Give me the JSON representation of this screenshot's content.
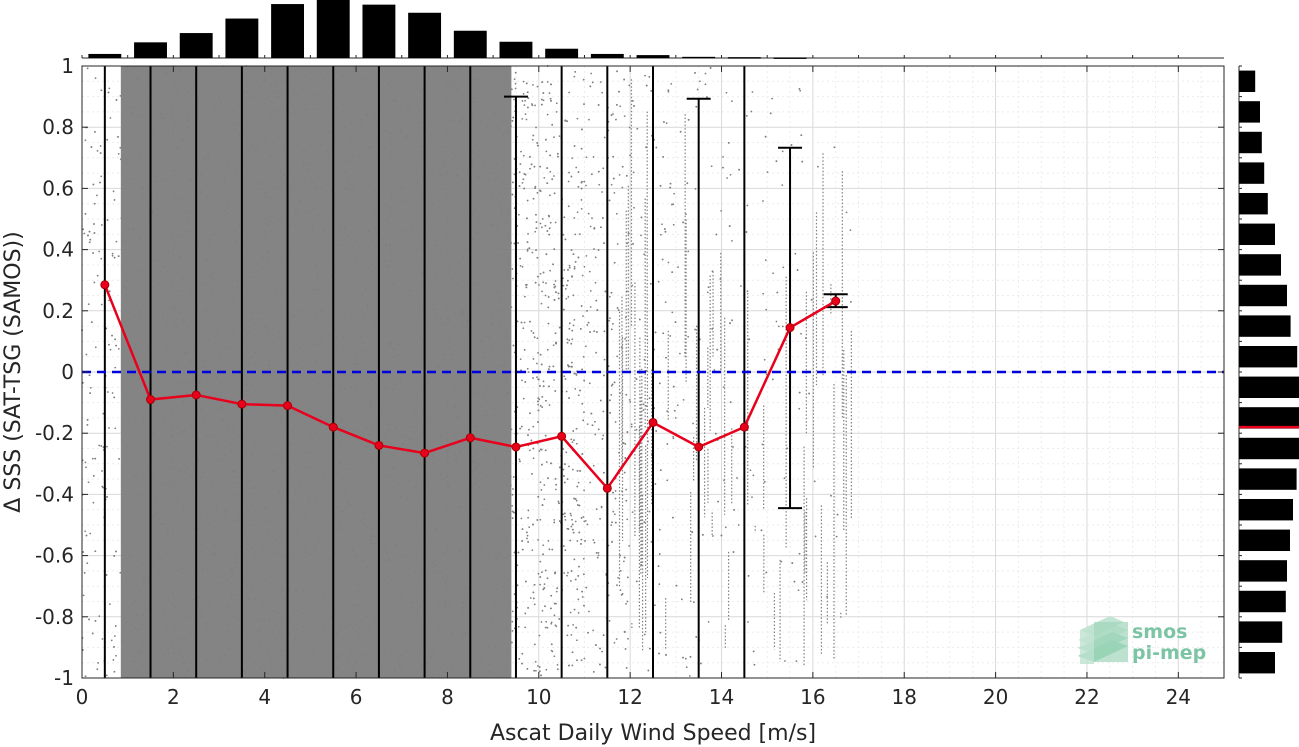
{
  "chart_data": {
    "type": "scatter",
    "xlabel": "Ascat Daily Wind Speed [m/s]",
    "ylabel": "Δ SSS (SAT-TSG (SAMOS))",
    "xlim": [
      0,
      25
    ],
    "ylim": [
      -1,
      1
    ],
    "x_ticks": [
      "0",
      "2",
      "4",
      "6",
      "8",
      "10",
      "12",
      "14",
      "16",
      "18",
      "20",
      "22",
      "24"
    ],
    "y_ticks": [
      "-1",
      "-0.8",
      "-0.6",
      "-0.4",
      "-0.2",
      "0",
      "0.2",
      "0.4",
      "0.6",
      "0.8",
      "1"
    ],
    "grid": true,
    "zero_reference_line": {
      "y": 0,
      "color": "#0000dd",
      "style": "dashed"
    },
    "bin_mean": {
      "color": "#e8001c",
      "x": [
        0.5,
        1.5,
        2.5,
        3.5,
        4.5,
        5.5,
        6.5,
        7.5,
        8.5,
        9.5,
        10.5,
        11.5,
        12.5,
        13.5,
        14.5,
        15.5,
        16.5
      ],
      "y": [
        0.285,
        -0.09,
        -0.075,
        -0.105,
        -0.11,
        -0.18,
        -0.24,
        -0.265,
        -0.215,
        -0.245,
        -0.21,
        -0.38,
        -0.165,
        -0.245,
        -0.18,
        0.145,
        0.232
      ]
    },
    "error_bars": {
      "x": [
        9.5,
        13.5,
        15.5,
        16.5
      ],
      "upper": [
        0.9,
        0.893,
        0.733,
        0.254
      ],
      "lower": [
        -1.0,
        -1.0,
        -0.445,
        0.212
      ]
    },
    "bin_edges_std_bars_full_range_x": [
      0.5,
      1.5,
      2.5,
      3.5,
      4.5,
      5.5,
      6.5,
      7.5,
      8.5,
      10.5,
      11.5,
      12.5,
      14.5
    ],
    "scatter_color": "#808080",
    "top_histogram": {
      "x": [
        0.5,
        1.5,
        2.5,
        3.5,
        4.5,
        5.5,
        6.5,
        7.5,
        8.5,
        9.5,
        10.5,
        11.5,
        12.5,
        13.5,
        14.5,
        15.5
      ],
      "rel_freq": [
        0.07,
        0.27,
        0.43,
        0.68,
        0.93,
        1.0,
        0.92,
        0.78,
        0.47,
        0.28,
        0.16,
        0.07,
        0.05,
        0.02,
        0.015,
        0.01
      ]
    },
    "right_histogram": {
      "y_centers": [
        0.95,
        0.85,
        0.75,
        0.65,
        0.55,
        0.45,
        0.35,
        0.25,
        0.15,
        0.05,
        -0.05,
        -0.15,
        -0.25,
        -0.35,
        -0.45,
        -0.55,
        -0.65,
        -0.75,
        -0.85,
        -0.95
      ],
      "rel_freq": [
        0.27,
        0.35,
        0.38,
        0.42,
        0.48,
        0.6,
        0.7,
        0.8,
        0.86,
        0.97,
        1.0,
        1.0,
        1.0,
        0.96,
        0.9,
        0.85,
        0.8,
        0.78,
        0.72,
        0.6
      ],
      "median_line_y": -0.18,
      "median_color": "#e8001c"
    }
  },
  "logo": {
    "line1": "smos",
    "line2": "pi-mep"
  }
}
